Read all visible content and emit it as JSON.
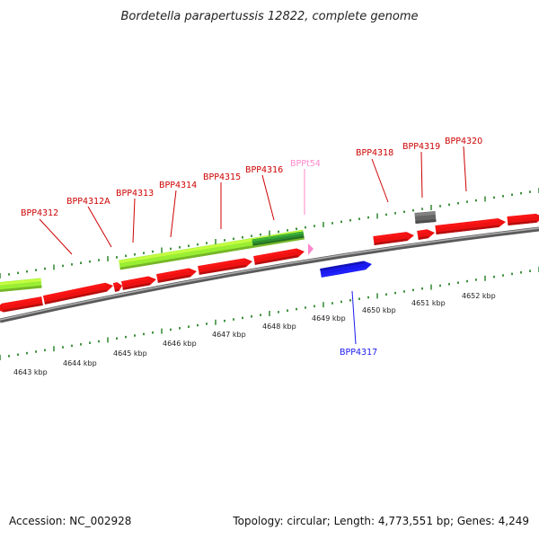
{
  "title": "Bordetella parapertussis 12822, complete genome",
  "footer": {
    "accession": "Accession: NC_002928",
    "summary": "Topology: circular; Length: 4,773,551 bp; Genes: 4,249"
  },
  "colors": {
    "cds": "#ee1111",
    "rna": "#ff88cc",
    "pseudogene": "#666666",
    "selected": "#1a1aee",
    "cog_lime": "#99ee33",
    "cog_dark": "#2f8f2f",
    "tick": "#117711",
    "backbone": "#888888"
  },
  "gene_labels": [
    {
      "text": "BPP4312",
      "color": "#cc0000"
    },
    {
      "text": "BPP4312A",
      "color": "#cc0000"
    },
    {
      "text": "BPP4313",
      "color": "#cc0000"
    },
    {
      "text": "BPP4314",
      "color": "#cc0000"
    },
    {
      "text": "BPP4315",
      "color": "#cc0000"
    },
    {
      "text": "BPP4316",
      "color": "#cc0000"
    },
    {
      "text": "BPPt54",
      "color": "#ff88cc"
    },
    {
      "text": "BPP4318",
      "color": "#cc0000"
    },
    {
      "text": "BPP4319",
      "color": "#cc0000"
    },
    {
      "text": "BPP4320",
      "color": "#cc0000"
    },
    {
      "text": "BPP4317",
      "color": "#1a1aee"
    }
  ],
  "scale_labels": [
    "4643 kbp",
    "4644 kbp",
    "4645 kbp",
    "4646 kbp",
    "4647 kbp",
    "4648 kbp",
    "4649 kbp",
    "4650 kbp",
    "4651 kbp",
    "4652 kbp"
  ]
}
